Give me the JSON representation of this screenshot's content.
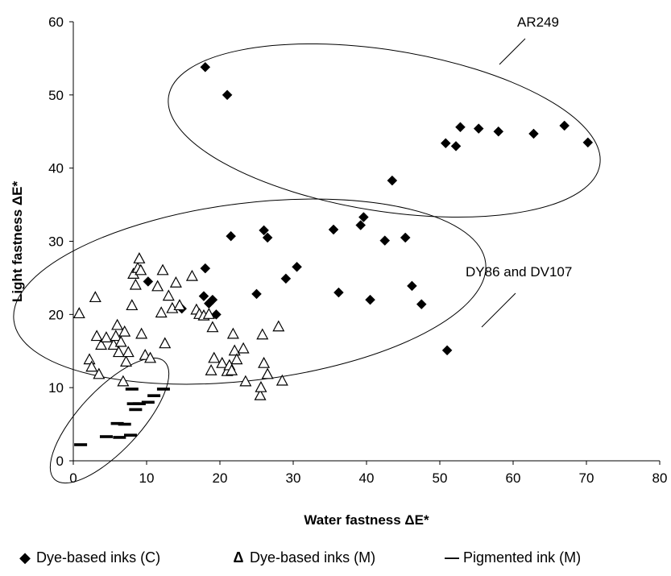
{
  "chart_data": {
    "type": "scatter",
    "xlabel": "Water fastness ΔE*",
    "ylabel": "Light fastness ΔE*",
    "xlim": [
      0,
      80
    ],
    "ylim": [
      0,
      60
    ],
    "x_ticks": [
      "0",
      "10",
      "20",
      "30",
      "40",
      "50",
      "60",
      "70",
      "80"
    ],
    "y_ticks": [
      "0",
      "10",
      "20",
      "30",
      "40",
      "50",
      "60"
    ],
    "grid": false,
    "legend_position": "bottom",
    "series": [
      {
        "name": "Dye-based inks (C)",
        "marker": "filled-diamond",
        "color": "#000000",
        "points": [
          [
            18.0,
            53.8
          ],
          [
            21.0,
            50.0
          ],
          [
            43.5,
            38.3
          ],
          [
            50.8,
            43.4
          ],
          [
            52.2,
            43.0
          ],
          [
            52.8,
            45.6
          ],
          [
            55.3,
            45.4
          ],
          [
            58.0,
            45.0
          ],
          [
            62.8,
            44.7
          ],
          [
            67.0,
            45.8
          ],
          [
            70.2,
            43.5
          ],
          [
            10.2,
            24.5
          ],
          [
            14.8,
            20.8
          ],
          [
            17.8,
            22.5
          ],
          [
            18.0,
            26.3
          ],
          [
            18.5,
            21.5
          ],
          [
            19.0,
            22.0
          ],
          [
            19.5,
            20.0
          ],
          [
            21.5,
            30.7
          ],
          [
            25.0,
            22.8
          ],
          [
            26.0,
            31.5
          ],
          [
            26.5,
            30.5
          ],
          [
            29.0,
            24.9
          ],
          [
            30.5,
            26.5
          ],
          [
            35.5,
            31.6
          ],
          [
            36.2,
            23.0
          ],
          [
            39.2,
            32.2
          ],
          [
            39.6,
            33.3
          ],
          [
            40.5,
            22.0
          ],
          [
            42.5,
            30.1
          ],
          [
            45.3,
            30.5
          ],
          [
            46.2,
            23.9
          ],
          [
            47.5,
            21.4
          ],
          [
            51.0,
            15.1
          ]
        ]
      },
      {
        "name": "Dye-based inks (M)",
        "marker": "open-triangle",
        "color": "#000000",
        "points": [
          [
            0.8,
            20.1
          ],
          [
            2.2,
            13.8
          ],
          [
            2.5,
            12.8
          ],
          [
            3.0,
            22.3
          ],
          [
            3.2,
            17.0
          ],
          [
            3.5,
            11.8
          ],
          [
            3.8,
            15.8
          ],
          [
            4.5,
            16.8
          ],
          [
            5.5,
            15.8
          ],
          [
            5.8,
            17.0
          ],
          [
            6.0,
            18.5
          ],
          [
            6.2,
            14.8
          ],
          [
            6.5,
            16.2
          ],
          [
            6.8,
            10.8
          ],
          [
            7.0,
            17.6
          ],
          [
            7.2,
            13.5
          ],
          [
            7.5,
            14.8
          ],
          [
            8.0,
            21.2
          ],
          [
            8.2,
            25.5
          ],
          [
            8.5,
            24.0
          ],
          [
            8.8,
            26.3
          ],
          [
            9.0,
            27.6
          ],
          [
            9.2,
            26.0
          ],
          [
            9.3,
            17.3
          ],
          [
            9.8,
            14.4
          ],
          [
            10.5,
            14.0
          ],
          [
            11.5,
            23.8
          ],
          [
            12.0,
            20.2
          ],
          [
            12.2,
            26.0
          ],
          [
            12.5,
            16.0
          ],
          [
            13.0,
            22.5
          ],
          [
            13.5,
            20.8
          ],
          [
            14.0,
            24.3
          ],
          [
            14.5,
            21.2
          ],
          [
            16.2,
            25.2
          ],
          [
            16.8,
            20.6
          ],
          [
            17.2,
            20.0
          ],
          [
            17.8,
            19.8
          ],
          [
            18.5,
            20.0
          ],
          [
            19.0,
            18.2
          ],
          [
            18.8,
            12.3
          ],
          [
            19.2,
            14.0
          ],
          [
            20.3,
            13.3
          ],
          [
            21.0,
            12.2
          ],
          [
            21.3,
            13.0
          ],
          [
            21.6,
            12.3
          ],
          [
            21.8,
            17.3
          ],
          [
            22.0,
            15.0
          ],
          [
            22.3,
            13.8
          ],
          [
            23.2,
            15.3
          ],
          [
            23.5,
            10.8
          ],
          [
            25.5,
            8.9
          ],
          [
            25.6,
            10.0
          ],
          [
            25.8,
            17.2
          ],
          [
            26.0,
            13.3
          ],
          [
            26.5,
            11.8
          ],
          [
            28.0,
            18.3
          ],
          [
            28.5,
            10.9
          ]
        ]
      },
      {
        "name": "Pigmented ink (M)",
        "marker": "dash",
        "color": "#000000",
        "points": [
          [
            1.0,
            2.2
          ],
          [
            4.5,
            3.3
          ],
          [
            6.0,
            5.1
          ],
          [
            6.3,
            3.2
          ],
          [
            7.0,
            5.0
          ],
          [
            7.8,
            3.5
          ],
          [
            8.0,
            9.8
          ],
          [
            8.2,
            7.8
          ],
          [
            8.5,
            7.0
          ],
          [
            9.0,
            7.8
          ],
          [
            10.2,
            8.0
          ],
          [
            11.0,
            8.9
          ],
          [
            12.3,
            9.8
          ]
        ]
      }
    ],
    "annotations": [
      {
        "text": "AR249"
      },
      {
        "text": "DY86 and DV107"
      }
    ]
  },
  "legend": {
    "items": [
      {
        "symbol": "◆",
        "label": "Dye-based inks (C)"
      },
      {
        "symbol": "Δ",
        "label": "Dye-based inks (M)"
      },
      {
        "symbol": "—",
        "label": "Pigmented ink (M)"
      }
    ]
  }
}
